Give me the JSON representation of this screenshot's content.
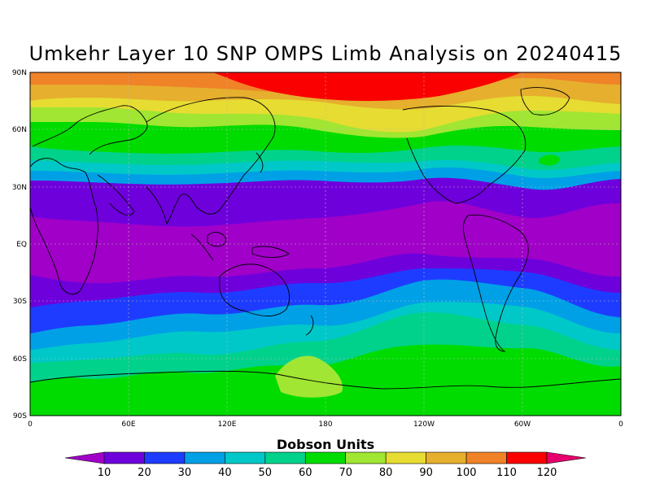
{
  "title": "Umkehr Layer 10 SNP OMPS Limb Analysis on 20240415",
  "colorbar": {
    "title": "Dobson Units",
    "ticks": [
      "10",
      "20",
      "30",
      "40",
      "50",
      "60",
      "70",
      "80",
      "90",
      "100",
      "110",
      "120"
    ],
    "colors": [
      "#a000c8",
      "#6e00dc",
      "#1e3cff",
      "#00a0e6",
      "#00c8c8",
      "#00d28c",
      "#00dc00",
      "#a0e632",
      "#e6dc32",
      "#e6af2d",
      "#f08228",
      "#fa0000",
      "#e6006e"
    ]
  },
  "axes": {
    "y_ticks": [
      "90N",
      "60N",
      "30N",
      "EQ",
      "30S",
      "60S",
      "90S"
    ],
    "x_ticks": [
      "0",
      "60E",
      "120E",
      "180",
      "120W",
      "60W",
      "0"
    ]
  },
  "chart_data": {
    "type": "heatmap",
    "title": "Umkehr Layer 10 SNP OMPS Limb Analysis on 20240415",
    "xlabel": "",
    "ylabel": "",
    "units": "Dobson Units",
    "x_range": [
      0,
      360
    ],
    "y_range": [
      -90,
      90
    ],
    "grid": true,
    "legend": "bottom",
    "bands_by_latitude": [
      {
        "lat_from": 90,
        "lat_to": 80,
        "value": 120
      },
      {
        "lat_from": 80,
        "lat_to": 70,
        "value": 110
      },
      {
        "lat_from": 70,
        "lat_to": 65,
        "value": 90
      },
      {
        "lat_from": 65,
        "lat_to": 55,
        "value": 80
      },
      {
        "lat_from": 55,
        "lat_to": 45,
        "value": 70
      },
      {
        "lat_from": 45,
        "lat_to": 38,
        "value": 60
      },
      {
        "lat_from": 38,
        "lat_to": 32,
        "value": 50
      },
      {
        "lat_from": 32,
        "lat_to": 25,
        "value": 40
      },
      {
        "lat_from": 25,
        "lat_to": 10,
        "value": 20
      },
      {
        "lat_from": 10,
        "lat_to": -20,
        "value": 10
      },
      {
        "lat_from": -20,
        "lat_to": -30,
        "value": 20
      },
      {
        "lat_from": -30,
        "lat_to": -40,
        "value": 30
      },
      {
        "lat_from": -40,
        "lat_to": -48,
        "value": 40
      },
      {
        "lat_from": -48,
        "lat_to": -55,
        "value": 50
      },
      {
        "lat_from": -55,
        "lat_to": -62,
        "value": 60
      },
      {
        "lat_from": -62,
        "lat_to": -90,
        "value": 70
      }
    ]
  }
}
